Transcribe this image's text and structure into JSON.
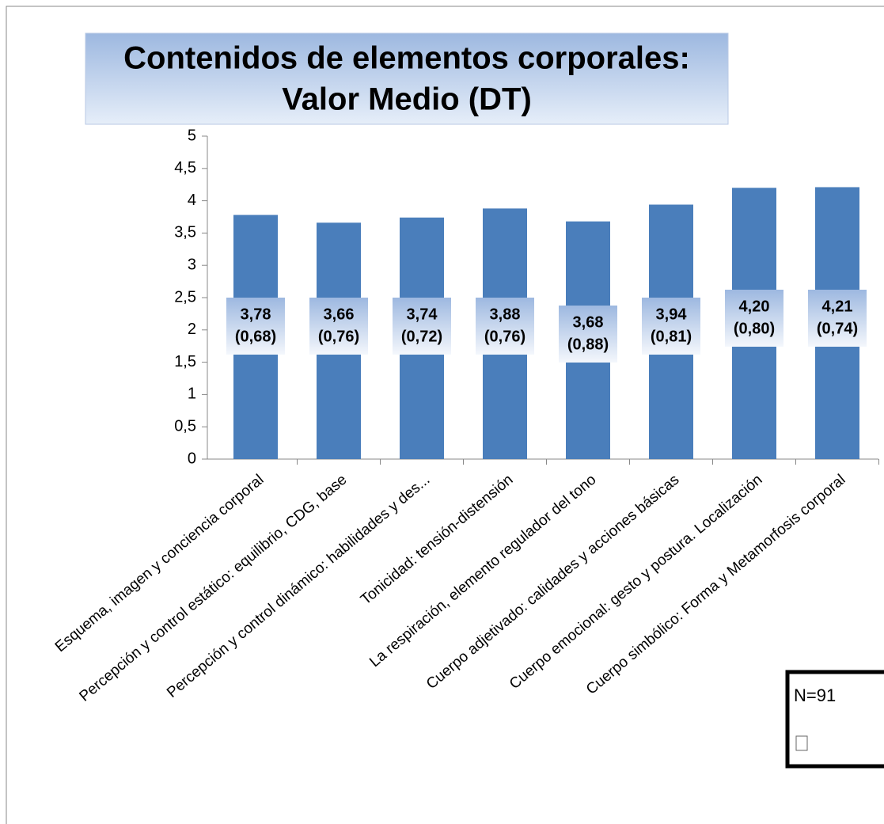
{
  "chart_data": {
    "type": "bar",
    "title": [
      "Contenidos de elementos corporales:",
      "Valor Medio (DT)"
    ],
    "categories": [
      "Esquema, imagen y conciencia corporal",
      "Percepción y control estático: equilibrio, CDG, base",
      "Percepción y control dinámico: habilidades y des...",
      "Tonicidad: tensión-distensión",
      "La respiración, elemento regulador del tono",
      "Cuerpo adjetivado: calidades y acciones básicas",
      "Cuerpo emocional: gesto y postura. Localización",
      "Cuerpo simbólico: Forma y Metamorfosis corporal"
    ],
    "values": [
      3.78,
      3.66,
      3.74,
      3.88,
      3.68,
      3.94,
      4.2,
      4.21
    ],
    "value_labels": [
      "3,78",
      "3,66",
      "3,74",
      "3,88",
      "3,68",
      "3,94",
      "4,20",
      "4,21"
    ],
    "sd": [
      0.68,
      0.76,
      0.72,
      0.76,
      0.88,
      0.81,
      0.8,
      0.74
    ],
    "sd_labels": [
      "(0,68)",
      "(0,76)",
      "(0,72)",
      "(0,76)",
      "(0,88)",
      "(0,81)",
      "(0,80)",
      "(0,74)"
    ],
    "color": "#4a7ebb",
    "ylim": [
      0,
      5
    ],
    "yticks": [
      0,
      {
        "value": 0.5,
        "label": "0,5"
      },
      1,
      {
        "value": 1.5,
        "label": "1,5"
      },
      2,
      {
        "value": 2.5,
        "label": "2,5"
      },
      3,
      {
        "value": 3.5,
        "label": "3,5"
      },
      4,
      {
        "value": 4.5,
        "label": "4,5"
      },
      5
    ],
    "note": "N=91"
  }
}
